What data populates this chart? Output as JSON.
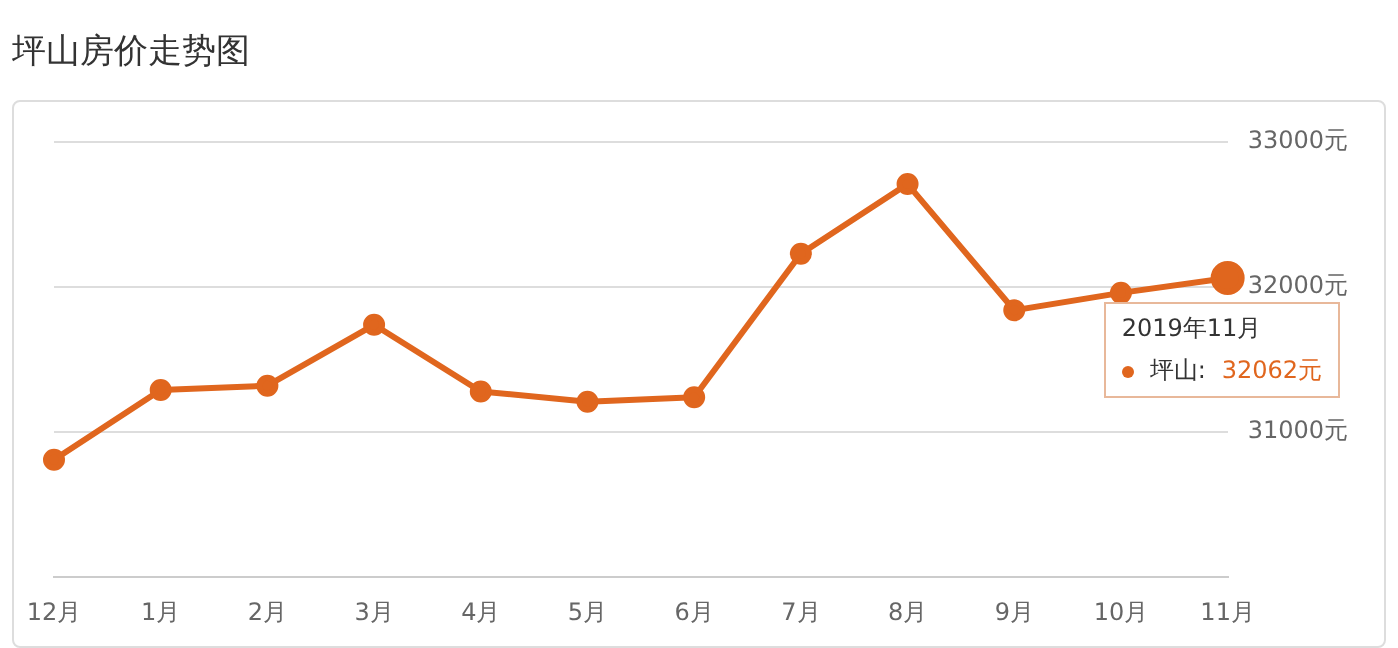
{
  "chart_data": {
    "type": "line",
    "title": "坪山房价走势图",
    "categories": [
      "12月",
      "1月",
      "2月",
      "3月",
      "4月",
      "5月",
      "6月",
      "7月",
      "8月",
      "9月",
      "10月",
      "11月"
    ],
    "series": [
      {
        "name": "坪山:",
        "color": "#e0661e",
        "values": [
          30810,
          31290,
          31320,
          31740,
          31280,
          31210,
          31240,
          32230,
          32710,
          31840,
          31960,
          32062
        ],
        "value_labels": [
          null,
          null,
          null,
          null,
          null,
          null,
          null,
          null,
          null,
          null,
          null,
          "32062元"
        ]
      }
    ],
    "ylim": [
      30000,
      33000
    ],
    "yticks": [
      {
        "value": 31000,
        "label": "31000元"
      },
      {
        "value": 32000,
        "label": "32000元"
      },
      {
        "value": 33000,
        "label": "33000元"
      }
    ],
    "annotations": [
      "2019年11月"
    ],
    "grid": "y",
    "legend": "right",
    "marker": "circle",
    "line_style": "solid"
  }
}
